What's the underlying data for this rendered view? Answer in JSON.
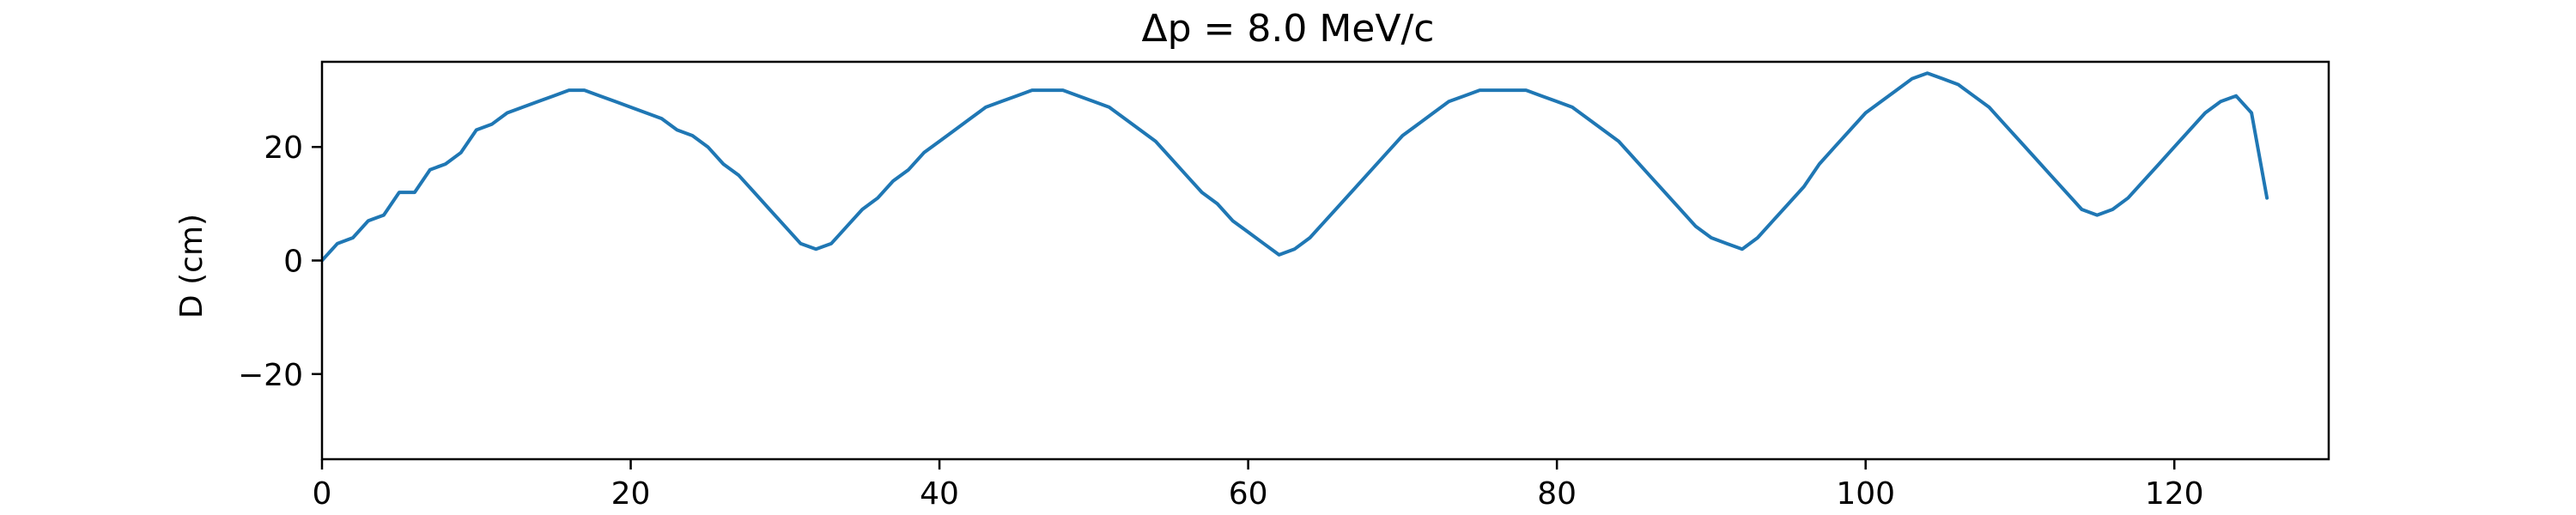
{
  "chart_data": {
    "type": "line",
    "title": "Δp = 8.0 MeV/c",
    "xlabel": "",
    "ylabel": "D (cm)",
    "xlim": [
      0,
      130
    ],
    "ylim": [
      -35,
      35
    ],
    "xticks": [
      0,
      20,
      40,
      60,
      80,
      100,
      120
    ],
    "xtick_labels": [
      "0",
      "20",
      "40",
      "60",
      "80",
      "100",
      "120"
    ],
    "yticks": [
      -20,
      0,
      20
    ],
    "ytick_labels": [
      "−20",
      "0",
      "20"
    ],
    "grid": false,
    "legend": "none",
    "series": [
      {
        "color": "#1f77b4",
        "x": [
          0,
          1,
          2,
          3,
          4,
          5,
          6,
          7,
          8,
          9,
          10,
          11,
          12,
          13,
          14,
          15,
          16,
          17,
          18,
          19,
          20,
          21,
          22,
          23,
          24,
          25,
          26,
          27,
          28,
          29,
          30,
          31,
          32,
          33,
          34,
          35,
          36,
          37,
          38,
          39,
          40,
          41,
          42,
          43,
          44,
          45,
          46,
          47,
          48,
          49,
          50,
          51,
          52,
          53,
          54,
          55,
          56,
          57,
          58,
          59,
          60,
          61,
          62,
          63,
          64,
          65,
          66,
          67,
          68,
          69,
          70,
          71,
          72,
          73,
          74,
          75,
          76,
          77,
          78,
          79,
          80,
          81,
          82,
          83,
          84,
          85,
          86,
          87,
          88,
          89,
          90,
          91,
          92,
          93,
          94,
          95,
          96,
          97,
          98,
          99,
          100,
          101,
          102,
          103,
          104,
          105,
          106,
          107,
          108,
          109,
          110,
          111,
          112,
          113,
          114,
          115,
          116,
          117,
          118,
          119,
          120,
          121,
          122,
          123,
          124,
          125,
          126
        ],
        "y": [
          0.0,
          3.0,
          4.0,
          7.0,
          8.0,
          12.0,
          12.0,
          16.0,
          17.0,
          19.0,
          23.0,
          24.0,
          26.0,
          27.0,
          28.0,
          29.0,
          30.0,
          30.0,
          29.0,
          28.0,
          27.0,
          26.0,
          25.0,
          23.0,
          22.0,
          20.0,
          17.0,
          15.0,
          12.0,
          9.0,
          6.0,
          3.0,
          2.0,
          3.0,
          6.0,
          9.0,
          11.0,
          14.0,
          16.0,
          19.0,
          21.0,
          23.0,
          25.0,
          27.0,
          28.0,
          29.0,
          30.0,
          30.0,
          30.0,
          29.0,
          28.0,
          27.0,
          25.0,
          23.0,
          21.0,
          18.0,
          15.0,
          12.0,
          10.0,
          7.0,
          5.0,
          3.0,
          1.0,
          2.0,
          4.0,
          7.0,
          10.0,
          13.0,
          16.0,
          19.0,
          22.0,
          24.0,
          26.0,
          28.0,
          29.0,
          30.0,
          30.0,
          30.0,
          30.0,
          29.0,
          28.0,
          27.0,
          25.0,
          23.0,
          21.0,
          18.0,
          15.0,
          12.0,
          9.0,
          6.0,
          4.0,
          3.0,
          2.0,
          4.0,
          7.0,
          10.0,
          13.0,
          17.0,
          20.0,
          23.0,
          26.0,
          28.0,
          30.0,
          32.0,
          33.0,
          32.0,
          31.0,
          29.0,
          27.0,
          24.0,
          21.0,
          18.0,
          15.0,
          12.0,
          9.0,
          8.0,
          9.0,
          11.0,
          14.0,
          17.0,
          20.0,
          23.0,
          26.0,
          28.0,
          29.0,
          26.0,
          11.0
        ]
      }
    ]
  }
}
